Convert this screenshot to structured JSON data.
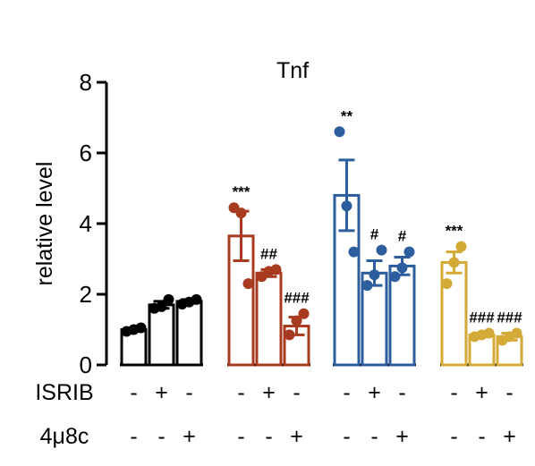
{
  "chart_data": {
    "type": "bar",
    "title": "Tnf",
    "ylabel": "relative level",
    "ylim": [
      0,
      8
    ],
    "yticks": [
      "0",
      "2",
      "4",
      "6",
      "8"
    ],
    "rows": [
      {
        "label": "ISRIB",
        "signs": [
          "-",
          "+",
          "-",
          "-",
          "+",
          "-",
          "-",
          "+",
          "-",
          "-",
          "+",
          "-"
        ]
      },
      {
        "label": "4μ8c",
        "signs": [
          "-",
          "-",
          "+",
          "-",
          "-",
          "+",
          "-",
          "-",
          "+",
          "-",
          "-",
          "+"
        ]
      }
    ],
    "groups": [
      {
        "color": "#000000",
        "bars": [
          {
            "value": 1.0,
            "err": 0.05,
            "points": [
              0.95,
              1.0,
              1.05
            ],
            "annotation": ""
          },
          {
            "value": 1.7,
            "err": 0.1,
            "points": [
              1.6,
              1.65,
              1.85
            ],
            "annotation": ""
          },
          {
            "value": 1.8,
            "err": 0.05,
            "points": [
              1.72,
              1.78,
              1.85
            ],
            "annotation": ""
          }
        ]
      },
      {
        "color": "#a83a1f",
        "bars": [
          {
            "value": 3.65,
            "err": 0.7,
            "points": [
              4.45,
              4.3,
              2.3
            ],
            "annotation": "***"
          },
          {
            "value": 2.6,
            "err": 0.1,
            "points": [
              2.5,
              2.65,
              2.7
            ],
            "annotation": "##"
          },
          {
            "value": 1.1,
            "err": 0.25,
            "points": [
              0.85,
              1.25,
              1.45
            ],
            "annotation": "###"
          }
        ]
      },
      {
        "color": "#2c5d9c",
        "bars": [
          {
            "value": 4.8,
            "err": 1.0,
            "points": [
              6.6,
              4.5,
              3.2
            ],
            "annotation": "**"
          },
          {
            "value": 2.6,
            "err": 0.35,
            "points": [
              2.25,
              2.55,
              3.25
            ],
            "annotation": "#"
          },
          {
            "value": 2.8,
            "err": 0.25,
            "points": [
              2.5,
              2.75,
              3.2
            ],
            "annotation": "#"
          }
        ]
      },
      {
        "color": "#d4aa37",
        "bars": [
          {
            "value": 2.9,
            "err": 0.3,
            "points": [
              2.3,
              2.9,
              3.35
            ],
            "annotation": "***"
          },
          {
            "value": 0.85,
            "err": 0.05,
            "points": [
              0.8,
              0.85,
              0.9
            ],
            "annotation": "###"
          },
          {
            "value": 0.8,
            "err": 0.1,
            "points": [
              0.7,
              0.8,
              0.9
            ],
            "annotation": "###"
          }
        ]
      }
    ]
  }
}
